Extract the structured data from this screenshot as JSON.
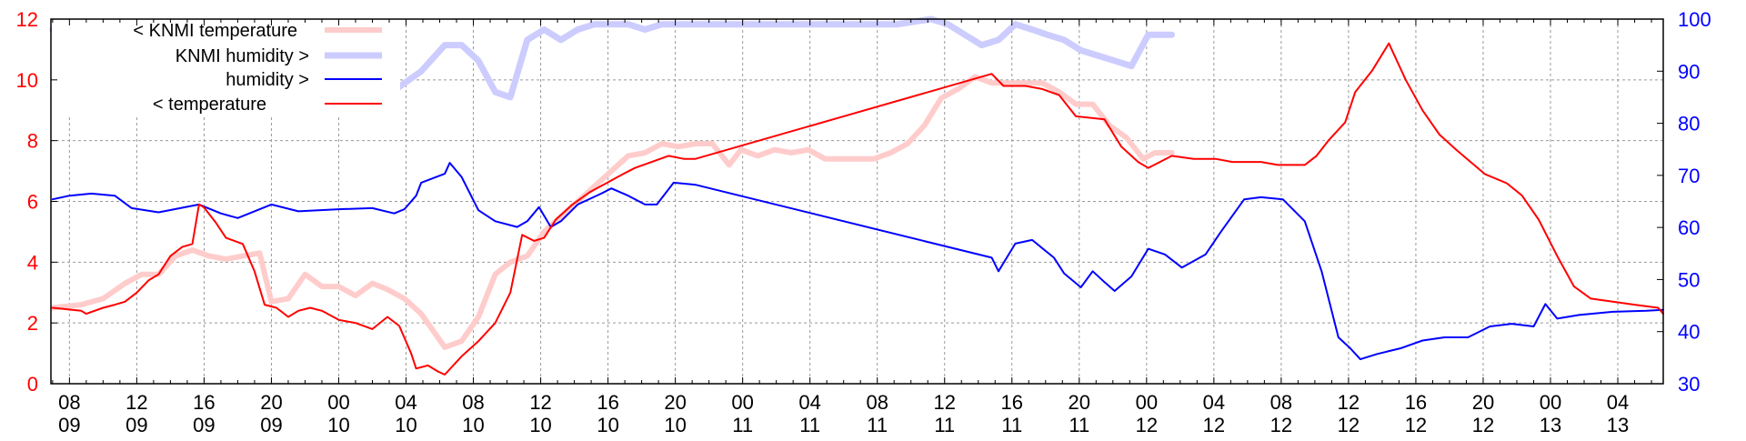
{
  "chart_data": {
    "type": "line",
    "title": "",
    "xlabel": "",
    "ylabel_left": "temperature",
    "ylabel_right": "humidity",
    "x_unit": "hours since day 09 00:00",
    "xlim": [
      6.9,
      102.7
    ],
    "ylim_left": [
      0,
      12
    ],
    "ylim_right": [
      30,
      100
    ],
    "grid": true,
    "legend_position": "top-left",
    "x_ticks": [
      {
        "h": 8,
        "time": "08",
        "day": "09"
      },
      {
        "h": 12,
        "time": "12",
        "day": "09"
      },
      {
        "h": 16,
        "time": "16",
        "day": "09"
      },
      {
        "h": 20,
        "time": "20",
        "day": "09"
      },
      {
        "h": 24,
        "time": "00",
        "day": "10"
      },
      {
        "h": 28,
        "time": "04",
        "day": "10"
      },
      {
        "h": 32,
        "time": "08",
        "day": "10"
      },
      {
        "h": 36,
        "time": "12",
        "day": "10"
      },
      {
        "h": 40,
        "time": "16",
        "day": "10"
      },
      {
        "h": 44,
        "time": "20",
        "day": "10"
      },
      {
        "h": 48,
        "time": "00",
        "day": "11"
      },
      {
        "h": 52,
        "time": "04",
        "day": "11"
      },
      {
        "h": 56,
        "time": "08",
        "day": "11"
      },
      {
        "h": 60,
        "time": "12",
        "day": "11"
      },
      {
        "h": 64,
        "time": "16",
        "day": "11"
      },
      {
        "h": 68,
        "time": "20",
        "day": "11"
      },
      {
        "h": 72,
        "time": "00",
        "day": "12"
      },
      {
        "h": 76,
        "time": "04",
        "day": "12"
      },
      {
        "h": 80,
        "time": "08",
        "day": "12"
      },
      {
        "h": 84,
        "time": "12",
        "day": "12"
      },
      {
        "h": 88,
        "time": "16",
        "day": "12"
      },
      {
        "h": 92,
        "time": "20",
        "day": "12"
      },
      {
        "h": 96,
        "time": "00",
        "day": "13"
      },
      {
        "h": 100,
        "time": "04",
        "day": "13"
      }
    ],
    "y_ticks_left": [
      "0",
      "2",
      "4",
      "6",
      "8",
      "10",
      "12"
    ],
    "y_ticks_right": [
      "30",
      "40",
      "50",
      "60",
      "70",
      "80",
      "90",
      "100"
    ],
    "series": [
      {
        "name": "< KNMI temperature",
        "axis": "left",
        "color": "#ffcccc",
        "width": 6,
        "points": [
          [
            7.0,
            2.5
          ],
          [
            8.7,
            2.6
          ],
          [
            10.0,
            2.8
          ],
          [
            11.3,
            3.3
          ],
          [
            12.3,
            3.6
          ],
          [
            13.3,
            3.6
          ],
          [
            14.3,
            4.2
          ],
          [
            15.3,
            4.4
          ],
          [
            16.3,
            4.2
          ],
          [
            17.3,
            4.1
          ],
          [
            18.3,
            4.2
          ],
          [
            19.3,
            4.3
          ],
          [
            20.0,
            2.7
          ],
          [
            21.0,
            2.8
          ],
          [
            22.0,
            3.6
          ],
          [
            23.0,
            3.2
          ],
          [
            24.0,
            3.2
          ],
          [
            25.0,
            2.9
          ],
          [
            26.0,
            3.3
          ],
          [
            26.9,
            3.1
          ],
          [
            27.9,
            2.8
          ],
          [
            28.9,
            2.3
          ],
          [
            30.3,
            1.2
          ],
          [
            31.3,
            1.4
          ],
          [
            32.3,
            2.2
          ],
          [
            33.3,
            3.6
          ],
          [
            34.2,
            4.0
          ],
          [
            35.2,
            4.2
          ],
          [
            36.2,
            5.0
          ],
          [
            37.2,
            5.5
          ],
          [
            38.2,
            6.0
          ],
          [
            39.2,
            6.5
          ],
          [
            40.2,
            7.0
          ],
          [
            41.2,
            7.5
          ],
          [
            42.2,
            7.6
          ],
          [
            43.2,
            7.9
          ],
          [
            44.2,
            7.8
          ],
          [
            45.2,
            7.9
          ],
          [
            46.2,
            7.9
          ],
          [
            47.2,
            7.2
          ],
          [
            47.9,
            7.7
          ],
          [
            48.9,
            7.5
          ],
          [
            49.9,
            7.7
          ],
          [
            50.9,
            7.6
          ],
          [
            51.9,
            7.7
          ],
          [
            52.9,
            7.4
          ],
          [
            53.9,
            7.4
          ],
          [
            54.8,
            7.4
          ],
          [
            55.8,
            7.4
          ],
          [
            56.8,
            7.6
          ],
          [
            57.8,
            7.9
          ],
          [
            58.8,
            8.5
          ],
          [
            59.8,
            9.4
          ],
          [
            60.8,
            9.7
          ],
          [
            61.8,
            10.1
          ],
          [
            62.8,
            9.9
          ],
          [
            63.8,
            9.9
          ],
          [
            64.8,
            9.9
          ],
          [
            65.8,
            9.9
          ],
          [
            66.8,
            9.6
          ],
          [
            67.8,
            9.2
          ],
          [
            68.8,
            9.2
          ],
          [
            69.8,
            8.5
          ],
          [
            70.8,
            8.1
          ],
          [
            71.8,
            7.4
          ],
          [
            72.5,
            7.6
          ],
          [
            73.5,
            7.6
          ]
        ]
      },
      {
        "name": "KNMI humidity >",
        "axis": "right",
        "color": "#ccccff",
        "width": 7,
        "points": [
          [
            7.0,
            98
          ],
          [
            7.3,
            97
          ],
          [
            27.6,
            87
          ],
          [
            28.9,
            90
          ],
          [
            30.3,
            95
          ],
          [
            31.3,
            95
          ],
          [
            32.3,
            92
          ],
          [
            33.3,
            86
          ],
          [
            34.2,
            85
          ],
          [
            35.2,
            96
          ],
          [
            36.2,
            98
          ],
          [
            37.2,
            96
          ],
          [
            38.2,
            98
          ],
          [
            39.2,
            99
          ],
          [
            40.2,
            99
          ],
          [
            41.2,
            99
          ],
          [
            42.2,
            98
          ],
          [
            43.2,
            99
          ],
          [
            48.9,
            99
          ],
          [
            52.9,
            99
          ],
          [
            57.2,
            99
          ],
          [
            59.2,
            100
          ],
          [
            60.2,
            99
          ],
          [
            61.2,
            97
          ],
          [
            62.2,
            95
          ],
          [
            63.2,
            96
          ],
          [
            64.2,
            99
          ],
          [
            65.2,
            98
          ],
          [
            66.1,
            97
          ],
          [
            67.1,
            96
          ],
          [
            68.1,
            94
          ],
          [
            69.1,
            93
          ],
          [
            70.1,
            92
          ],
          [
            71.1,
            91
          ],
          [
            72.1,
            97
          ],
          [
            73.5,
            97
          ]
        ]
      },
      {
        "name": "humidity >",
        "axis": "right",
        "color": "#0000ff",
        "width": 2,
        "points": [
          [
            7.0,
            65.4
          ],
          [
            8.0,
            66.1
          ],
          [
            9.3,
            66.5
          ],
          [
            10.7,
            66.1
          ],
          [
            11.7,
            63.7
          ],
          [
            13.3,
            62.9
          ],
          [
            15.7,
            64.4
          ],
          [
            17.0,
            62.7
          ],
          [
            18.0,
            61.8
          ],
          [
            20.0,
            64.4
          ],
          [
            21.6,
            63.1
          ],
          [
            24.0,
            63.5
          ],
          [
            26.0,
            63.7
          ],
          [
            27.3,
            62.7
          ],
          [
            27.9,
            63.5
          ],
          [
            28.6,
            66.1
          ],
          [
            28.9,
            68.6
          ],
          [
            30.3,
            70.3
          ],
          [
            30.6,
            72.4
          ],
          [
            31.3,
            69.7
          ],
          [
            32.3,
            63.3
          ],
          [
            33.3,
            61.2
          ],
          [
            34.6,
            60.1
          ],
          [
            35.2,
            61.2
          ],
          [
            35.9,
            63.9
          ],
          [
            36.6,
            60.1
          ],
          [
            37.2,
            61.2
          ],
          [
            38.2,
            64.4
          ],
          [
            39.6,
            66.5
          ],
          [
            40.2,
            67.5
          ],
          [
            41.2,
            66.1
          ],
          [
            42.2,
            64.4
          ],
          [
            42.9,
            64.4
          ],
          [
            43.9,
            68.6
          ],
          [
            45.2,
            68.2
          ],
          [
            62.8,
            54.2
          ],
          [
            63.2,
            51.6
          ],
          [
            64.2,
            56.9
          ],
          [
            65.2,
            57.6
          ],
          [
            66.5,
            54.2
          ],
          [
            67.1,
            51.2
          ],
          [
            68.1,
            48.5
          ],
          [
            68.8,
            51.6
          ],
          [
            69.5,
            49.5
          ],
          [
            70.1,
            47.8
          ],
          [
            71.1,
            50.6
          ],
          [
            72.1,
            55.9
          ],
          [
            73.1,
            54.8
          ],
          [
            74.1,
            52.3
          ],
          [
            75.5,
            54.8
          ],
          [
            76.4,
            59.1
          ],
          [
            77.8,
            65.4
          ],
          [
            78.8,
            65.8
          ],
          [
            80.1,
            65.4
          ],
          [
            81.4,
            61.2
          ],
          [
            82.4,
            51.6
          ],
          [
            83.4,
            38.9
          ],
          [
            84.1,
            36.8
          ],
          [
            84.7,
            34.7
          ],
          [
            85.7,
            35.7
          ],
          [
            87.1,
            36.8
          ],
          [
            88.4,
            38.3
          ],
          [
            89.7,
            38.9
          ],
          [
            91.1,
            38.9
          ],
          [
            92.4,
            41.0
          ],
          [
            93.7,
            41.5
          ],
          [
            95.0,
            41.0
          ],
          [
            95.7,
            45.3
          ],
          [
            96.4,
            42.5
          ],
          [
            97.7,
            43.2
          ],
          [
            99.7,
            43.8
          ],
          [
            101.7,
            44.0
          ],
          [
            102.7,
            44.2
          ]
        ]
      },
      {
        "name": "< temperature",
        "axis": "left",
        "color": "#ff0000",
        "width": 2,
        "points": [
          [
            7.0,
            2.5
          ],
          [
            8.7,
            2.4
          ],
          [
            9.0,
            2.3
          ],
          [
            10.0,
            2.5
          ],
          [
            10.7,
            2.6
          ],
          [
            11.3,
            2.7
          ],
          [
            12.0,
            3.0
          ],
          [
            12.7,
            3.4
          ],
          [
            13.3,
            3.6
          ],
          [
            14.0,
            4.2
          ],
          [
            14.7,
            4.5
          ],
          [
            15.3,
            4.6
          ],
          [
            15.7,
            5.9
          ],
          [
            16.0,
            5.8
          ],
          [
            16.7,
            5.3
          ],
          [
            17.3,
            4.8
          ],
          [
            18.3,
            4.6
          ],
          [
            19.0,
            3.7
          ],
          [
            19.6,
            2.6
          ],
          [
            20.3,
            2.5
          ],
          [
            21.0,
            2.2
          ],
          [
            21.6,
            2.4
          ],
          [
            22.3,
            2.5
          ],
          [
            23.0,
            2.4
          ],
          [
            24.0,
            2.1
          ],
          [
            25.0,
            2.0
          ],
          [
            26.0,
            1.8
          ],
          [
            26.9,
            2.2
          ],
          [
            27.6,
            1.9
          ],
          [
            28.3,
            1.0
          ],
          [
            28.6,
            0.5
          ],
          [
            29.3,
            0.6
          ],
          [
            29.9,
            0.4
          ],
          [
            30.3,
            0.3
          ],
          [
            31.3,
            0.9
          ],
          [
            32.3,
            1.4
          ],
          [
            33.3,
            2.0
          ],
          [
            34.2,
            3.0
          ],
          [
            34.9,
            4.9
          ],
          [
            35.6,
            4.7
          ],
          [
            36.2,
            4.8
          ],
          [
            36.9,
            5.4
          ],
          [
            37.9,
            5.9
          ],
          [
            38.9,
            6.3
          ],
          [
            39.9,
            6.6
          ],
          [
            40.9,
            6.9
          ],
          [
            41.6,
            7.1
          ],
          [
            42.6,
            7.3
          ],
          [
            43.6,
            7.5
          ],
          [
            44.5,
            7.4
          ],
          [
            45.2,
            7.4
          ],
          [
            62.8,
            10.2
          ],
          [
            63.5,
            9.8
          ],
          [
            64.8,
            9.8
          ],
          [
            65.8,
            9.7
          ],
          [
            66.8,
            9.5
          ],
          [
            67.8,
            8.8
          ],
          [
            69.5,
            8.7
          ],
          [
            70.5,
            7.8
          ],
          [
            71.5,
            7.3
          ],
          [
            72.1,
            7.1
          ],
          [
            73.5,
            7.5
          ],
          [
            74.8,
            7.4
          ],
          [
            76.1,
            7.4
          ],
          [
            77.1,
            7.3
          ],
          [
            78.8,
            7.3
          ],
          [
            79.8,
            7.2
          ],
          [
            81.4,
            7.2
          ],
          [
            82.1,
            7.5
          ],
          [
            82.8,
            8.0
          ],
          [
            83.8,
            8.6
          ],
          [
            84.4,
            9.6
          ],
          [
            85.4,
            10.3
          ],
          [
            86.4,
            11.2
          ],
          [
            87.4,
            10.0
          ],
          [
            88.4,
            9.0
          ],
          [
            89.4,
            8.2
          ],
          [
            90.4,
            7.7
          ],
          [
            92.1,
            6.9
          ],
          [
            93.4,
            6.6
          ],
          [
            94.3,
            6.2
          ],
          [
            95.3,
            5.4
          ],
          [
            96.4,
            4.2
          ],
          [
            97.4,
            3.2
          ],
          [
            98.4,
            2.8
          ],
          [
            99.7,
            2.7
          ],
          [
            101.0,
            2.6
          ],
          [
            102.4,
            2.5
          ],
          [
            102.7,
            2.3
          ]
        ]
      }
    ]
  }
}
